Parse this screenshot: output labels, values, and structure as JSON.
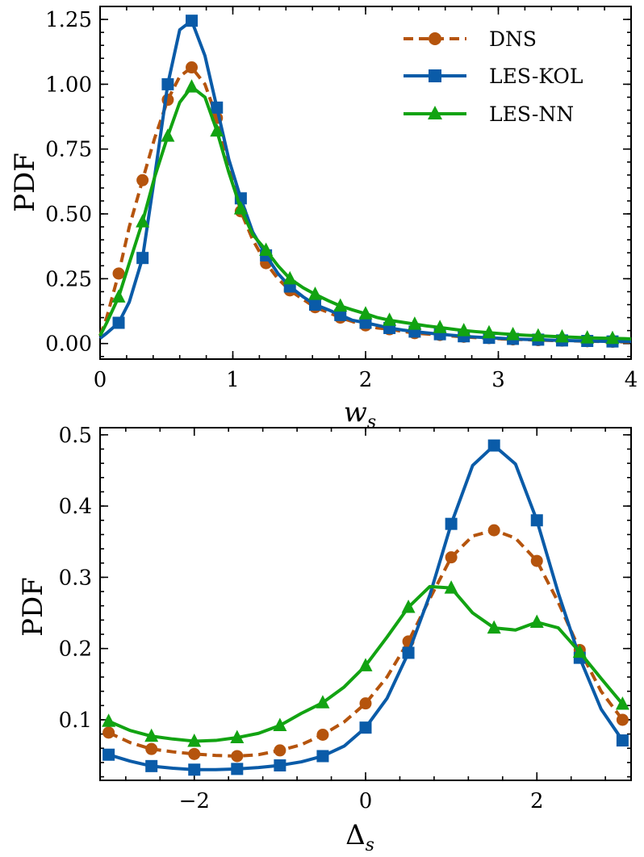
{
  "colors": {
    "DNS": "#b5540d",
    "LES-KOL": "#0a5ba8",
    "LES-NN": "#12a312"
  },
  "chart_data": [
    {
      "type": "line",
      "xlabel": "w",
      "xlabel_sub": "s",
      "ylabel": "PDF",
      "xlim": [
        0,
        4
      ],
      "ylim": [
        -0.06,
        1.3
      ],
      "xticks": [
        0,
        1,
        2,
        3,
        4
      ],
      "xtick_labels": [
        "0",
        "1",
        "2",
        "3",
        "4"
      ],
      "yticks": [
        0,
        0.25,
        0.5,
        0.75,
        1.0,
        1.25
      ],
      "ytick_labels": [
        "0.00",
        "0.25",
        "0.50",
        "0.75",
        "1.00",
        "1.25"
      ],
      "legend_position": "top-right",
      "series": [
        {
          "name": "DNS",
          "style": "dashed",
          "marker": "circle",
          "x": [
            0,
            0.05,
            0.14,
            0.22,
            0.32,
            0.41,
            0.51,
            0.6,
            0.69,
            0.79,
            0.88,
            0.97,
            1.06,
            1.15,
            1.25,
            1.34,
            1.43,
            1.53,
            1.62,
            1.72,
            1.81,
            1.9,
            2.0,
            2.09,
            2.18,
            2.28,
            2.37,
            2.46,
            2.56,
            2.65,
            2.74,
            2.83,
            2.93,
            3.02,
            3.11,
            3.21,
            3.3,
            3.39,
            3.48,
            3.58,
            3.67,
            3.76,
            3.86,
            3.95,
            4.0
          ],
          "y": [
            0.03,
            0.1,
            0.27,
            0.45,
            0.63,
            0.79,
            0.94,
            1.03,
            1.065,
            1.0,
            0.87,
            0.68,
            0.51,
            0.4,
            0.31,
            0.25,
            0.205,
            0.17,
            0.14,
            0.12,
            0.1,
            0.085,
            0.07,
            0.06,
            0.055,
            0.047,
            0.04,
            0.037,
            0.033,
            0.029,
            0.026,
            0.023,
            0.021,
            0.018,
            0.016,
            0.015,
            0.013,
            0.012,
            0.011,
            0.01,
            0.009,
            0.008,
            0.007,
            0.006,
            0.006
          ],
          "markers_x": [
            0.14,
            0.32,
            0.51,
            0.69,
            0.88,
            1.06,
            1.25,
            1.43,
            1.62,
            1.81,
            2.0,
            2.18,
            2.37,
            2.56,
            2.74,
            2.93,
            3.11,
            3.3,
            3.48,
            3.67,
            3.86
          ],
          "markers_y": [
            0.27,
            0.63,
            0.94,
            1.065,
            0.87,
            0.51,
            0.31,
            0.205,
            0.14,
            0.1,
            0.07,
            0.055,
            0.04,
            0.033,
            0.026,
            0.021,
            0.016,
            0.013,
            0.011,
            0.009,
            0.007
          ]
        },
        {
          "name": "LES-KOL",
          "style": "solid",
          "marker": "square",
          "x": [
            0,
            0.05,
            0.14,
            0.22,
            0.32,
            0.41,
            0.51,
            0.6,
            0.69,
            0.79,
            0.88,
            0.97,
            1.06,
            1.15,
            1.25,
            1.34,
            1.43,
            1.53,
            1.62,
            1.72,
            1.81,
            1.9,
            2.0,
            2.09,
            2.18,
            2.28,
            2.37,
            2.46,
            2.56,
            2.65,
            2.74,
            2.83,
            2.93,
            3.02,
            3.11,
            3.21,
            3.3,
            3.39,
            3.48,
            3.58,
            3.67,
            3.76,
            3.86,
            3.95,
            4.0
          ],
          "y": [
            0.02,
            0.04,
            0.08,
            0.16,
            0.33,
            0.64,
            1.0,
            1.21,
            1.245,
            1.11,
            0.91,
            0.71,
            0.56,
            0.43,
            0.34,
            0.27,
            0.22,
            0.18,
            0.15,
            0.13,
            0.11,
            0.09,
            0.08,
            0.07,
            0.06,
            0.052,
            0.046,
            0.041,
            0.036,
            0.032,
            0.028,
            0.025,
            0.022,
            0.02,
            0.018,
            0.016,
            0.015,
            0.013,
            0.012,
            0.011,
            0.01,
            0.009,
            0.008,
            0.008,
            0.008
          ],
          "markers_x": [
            0.14,
            0.32,
            0.51,
            0.69,
            0.88,
            1.06,
            1.25,
            1.43,
            1.62,
            1.81,
            2.0,
            2.18,
            2.37,
            2.56,
            2.74,
            2.93,
            3.11,
            3.3,
            3.48,
            3.67,
            3.86
          ],
          "markers_y": [
            0.08,
            0.33,
            1.0,
            1.245,
            0.91,
            0.56,
            0.34,
            0.22,
            0.15,
            0.11,
            0.08,
            0.06,
            0.046,
            0.036,
            0.028,
            0.022,
            0.018,
            0.015,
            0.012,
            0.01,
            0.008
          ]
        },
        {
          "name": "LES-NN",
          "style": "solid",
          "marker": "triangle",
          "x": [
            0,
            0.05,
            0.14,
            0.22,
            0.32,
            0.41,
            0.51,
            0.6,
            0.69,
            0.79,
            0.88,
            0.97,
            1.06,
            1.15,
            1.25,
            1.34,
            1.43,
            1.53,
            1.62,
            1.72,
            1.81,
            1.9,
            2.0,
            2.09,
            2.18,
            2.28,
            2.37,
            2.46,
            2.56,
            2.65,
            2.74,
            2.83,
            2.93,
            3.02,
            3.11,
            3.21,
            3.3,
            3.39,
            3.48,
            3.58,
            3.67,
            3.76,
            3.86,
            3.95,
            4.0
          ],
          "y": [
            0.03,
            0.08,
            0.18,
            0.31,
            0.47,
            0.64,
            0.8,
            0.93,
            0.99,
            0.95,
            0.82,
            0.66,
            0.52,
            0.42,
            0.36,
            0.3,
            0.25,
            0.215,
            0.19,
            0.165,
            0.145,
            0.13,
            0.115,
            0.1,
            0.09,
            0.082,
            0.075,
            0.068,
            0.062,
            0.056,
            0.05,
            0.046,
            0.042,
            0.038,
            0.035,
            0.032,
            0.03,
            0.028,
            0.026,
            0.024,
            0.022,
            0.021,
            0.02,
            0.019,
            0.018
          ],
          "markers_x": [
            0.14,
            0.32,
            0.51,
            0.69,
            0.88,
            1.06,
            1.25,
            1.43,
            1.62,
            1.81,
            2.0,
            2.18,
            2.37,
            2.56,
            2.74,
            2.93,
            3.11,
            3.3,
            3.48,
            3.67,
            3.86
          ],
          "markers_y": [
            0.18,
            0.47,
            0.8,
            0.99,
            0.82,
            0.52,
            0.36,
            0.25,
            0.19,
            0.145,
            0.115,
            0.09,
            0.075,
            0.062,
            0.05,
            0.042,
            0.035,
            0.03,
            0.026,
            0.022,
            0.02
          ]
        }
      ]
    },
    {
      "type": "line",
      "xlabel": "Δ",
      "xlabel_sub": "s",
      "ylabel": "PDF",
      "xlim": [
        -3.1,
        3.1
      ],
      "ylim": [
        0.015,
        0.51
      ],
      "xticks": [
        -2,
        0,
        2
      ],
      "xtick_labels": [
        "−2",
        "0",
        "2"
      ],
      "yticks": [
        0.1,
        0.2,
        0.3,
        0.4,
        0.5
      ],
      "ytick_labels": [
        "0.1",
        "0.2",
        "0.3",
        "0.4",
        "0.5"
      ],
      "series": [
        {
          "name": "DNS",
          "style": "dashed",
          "marker": "circle",
          "x": [
            -3.0,
            -2.75,
            -2.5,
            -2.25,
            -2.0,
            -1.75,
            -1.5,
            -1.25,
            -1.0,
            -0.75,
            -0.5,
            -0.25,
            0.0,
            0.25,
            0.5,
            0.75,
            1.0,
            1.25,
            1.5,
            1.75,
            2.0,
            2.25,
            2.5,
            2.75,
            3.0
          ],
          "y": [
            0.082,
            0.068,
            0.059,
            0.055,
            0.052,
            0.05,
            0.049,
            0.051,
            0.057,
            0.065,
            0.079,
            0.097,
            0.123,
            0.16,
            0.21,
            0.27,
            0.328,
            0.358,
            0.366,
            0.355,
            0.323,
            0.265,
            0.198,
            0.14,
            0.1
          ],
          "markers_x": [
            -3.0,
            -2.5,
            -2.0,
            -1.5,
            -1.0,
            -0.5,
            0.0,
            0.5,
            1.0,
            1.5,
            2.0,
            2.5,
            3.0
          ],
          "markers_y": [
            0.082,
            0.059,
            0.052,
            0.049,
            0.057,
            0.079,
            0.123,
            0.21,
            0.328,
            0.366,
            0.323,
            0.198,
            0.1
          ]
        },
        {
          "name": "LES-KOL",
          "style": "solid",
          "marker": "square",
          "x": [
            -3.0,
            -2.75,
            -2.5,
            -2.25,
            -2.0,
            -1.75,
            -1.5,
            -1.25,
            -1.0,
            -0.75,
            -0.5,
            -0.25,
            0.0,
            0.25,
            0.5,
            0.75,
            1.0,
            1.25,
            1.5,
            1.75,
            2.0,
            2.25,
            2.5,
            2.75,
            3.0
          ],
          "y": [
            0.051,
            0.042,
            0.035,
            0.032,
            0.03,
            0.03,
            0.031,
            0.033,
            0.036,
            0.041,
            0.049,
            0.063,
            0.089,
            0.13,
            0.194,
            0.275,
            0.375,
            0.457,
            0.485,
            0.459,
            0.38,
            0.278,
            0.187,
            0.115,
            0.071
          ],
          "markers_x": [
            -3.0,
            -2.5,
            -2.0,
            -1.5,
            -1.0,
            -0.5,
            0.0,
            0.5,
            1.0,
            1.5,
            2.0,
            2.5,
            3.0
          ],
          "markers_y": [
            0.051,
            0.035,
            0.03,
            0.031,
            0.036,
            0.049,
            0.089,
            0.194,
            0.375,
            0.485,
            0.38,
            0.187,
            0.071
          ]
        },
        {
          "name": "LES-NN",
          "style": "solid",
          "marker": "triangle",
          "x": [
            -3.0,
            -2.75,
            -2.5,
            -2.25,
            -2.0,
            -1.75,
            -1.5,
            -1.25,
            -1.0,
            -0.75,
            -0.5,
            -0.25,
            0.0,
            0.25,
            0.5,
            0.75,
            1.0,
            1.25,
            1.5,
            1.75,
            2.0,
            2.25,
            2.5,
            2.75,
            3.0
          ],
          "y": [
            0.098,
            0.085,
            0.077,
            0.073,
            0.07,
            0.071,
            0.075,
            0.081,
            0.092,
            0.109,
            0.124,
            0.146,
            0.176,
            0.216,
            0.258,
            0.287,
            0.285,
            0.25,
            0.229,
            0.226,
            0.237,
            0.229,
            0.195,
            0.158,
            0.122
          ],
          "markers_x": [
            -3.0,
            -2.5,
            -2.0,
            -1.5,
            -1.0,
            -0.5,
            0.0,
            0.5,
            1.0,
            1.5,
            2.0,
            2.5,
            3.0
          ],
          "markers_y": [
            0.098,
            0.077,
            0.07,
            0.075,
            0.092,
            0.124,
            0.176,
            0.258,
            0.285,
            0.229,
            0.237,
            0.195,
            0.122
          ]
        }
      ]
    }
  ]
}
